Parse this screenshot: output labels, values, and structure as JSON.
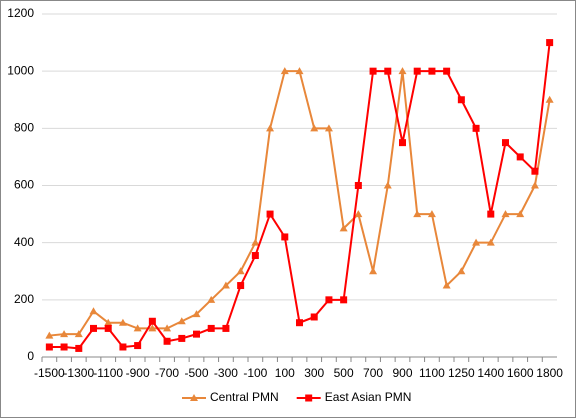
{
  "chart_data": {
    "type": "line",
    "categories": [
      "-1500",
      null,
      "-1300",
      null,
      "-1100",
      null,
      "-900",
      null,
      "-700",
      null,
      "-500",
      null,
      "-300",
      null,
      "-100",
      null,
      "100",
      null,
      "300",
      null,
      "500",
      null,
      "700",
      null,
      "900",
      null,
      "1100",
      null,
      "1250",
      null,
      "1400",
      null,
      "1600",
      null,
      "1800"
    ],
    "series": [
      {
        "name": "Central PMN",
        "color": "#e8873a",
        "marker": "triangle",
        "values": [
          75,
          80,
          80,
          160,
          120,
          120,
          100,
          100,
          100,
          125,
          150,
          200,
          250,
          300,
          400,
          800,
          1000,
          1000,
          800,
          800,
          450,
          500,
          300,
          600,
          1000,
          500,
          500,
          250,
          300,
          400,
          400,
          500,
          500,
          600,
          900
        ]
      },
      {
        "name": "East Asian PMN",
        "color": "#ff0000",
        "marker": "square",
        "values": [
          35,
          35,
          30,
          100,
          100,
          35,
          40,
          125,
          55,
          65,
          80,
          100,
          100,
          250,
          355,
          500,
          420,
          120,
          140,
          200,
          200,
          600,
          1000,
          1000,
          750,
          1000,
          1000,
          1000,
          900,
          800,
          500,
          750,
          700,
          650,
          1100
        ]
      }
    ],
    "ylim": [
      0,
      1200
    ],
    "yticks": [
      0,
      200,
      400,
      600,
      800,
      1000,
      1200
    ],
    "grid": true,
    "legend": "bottom"
  }
}
